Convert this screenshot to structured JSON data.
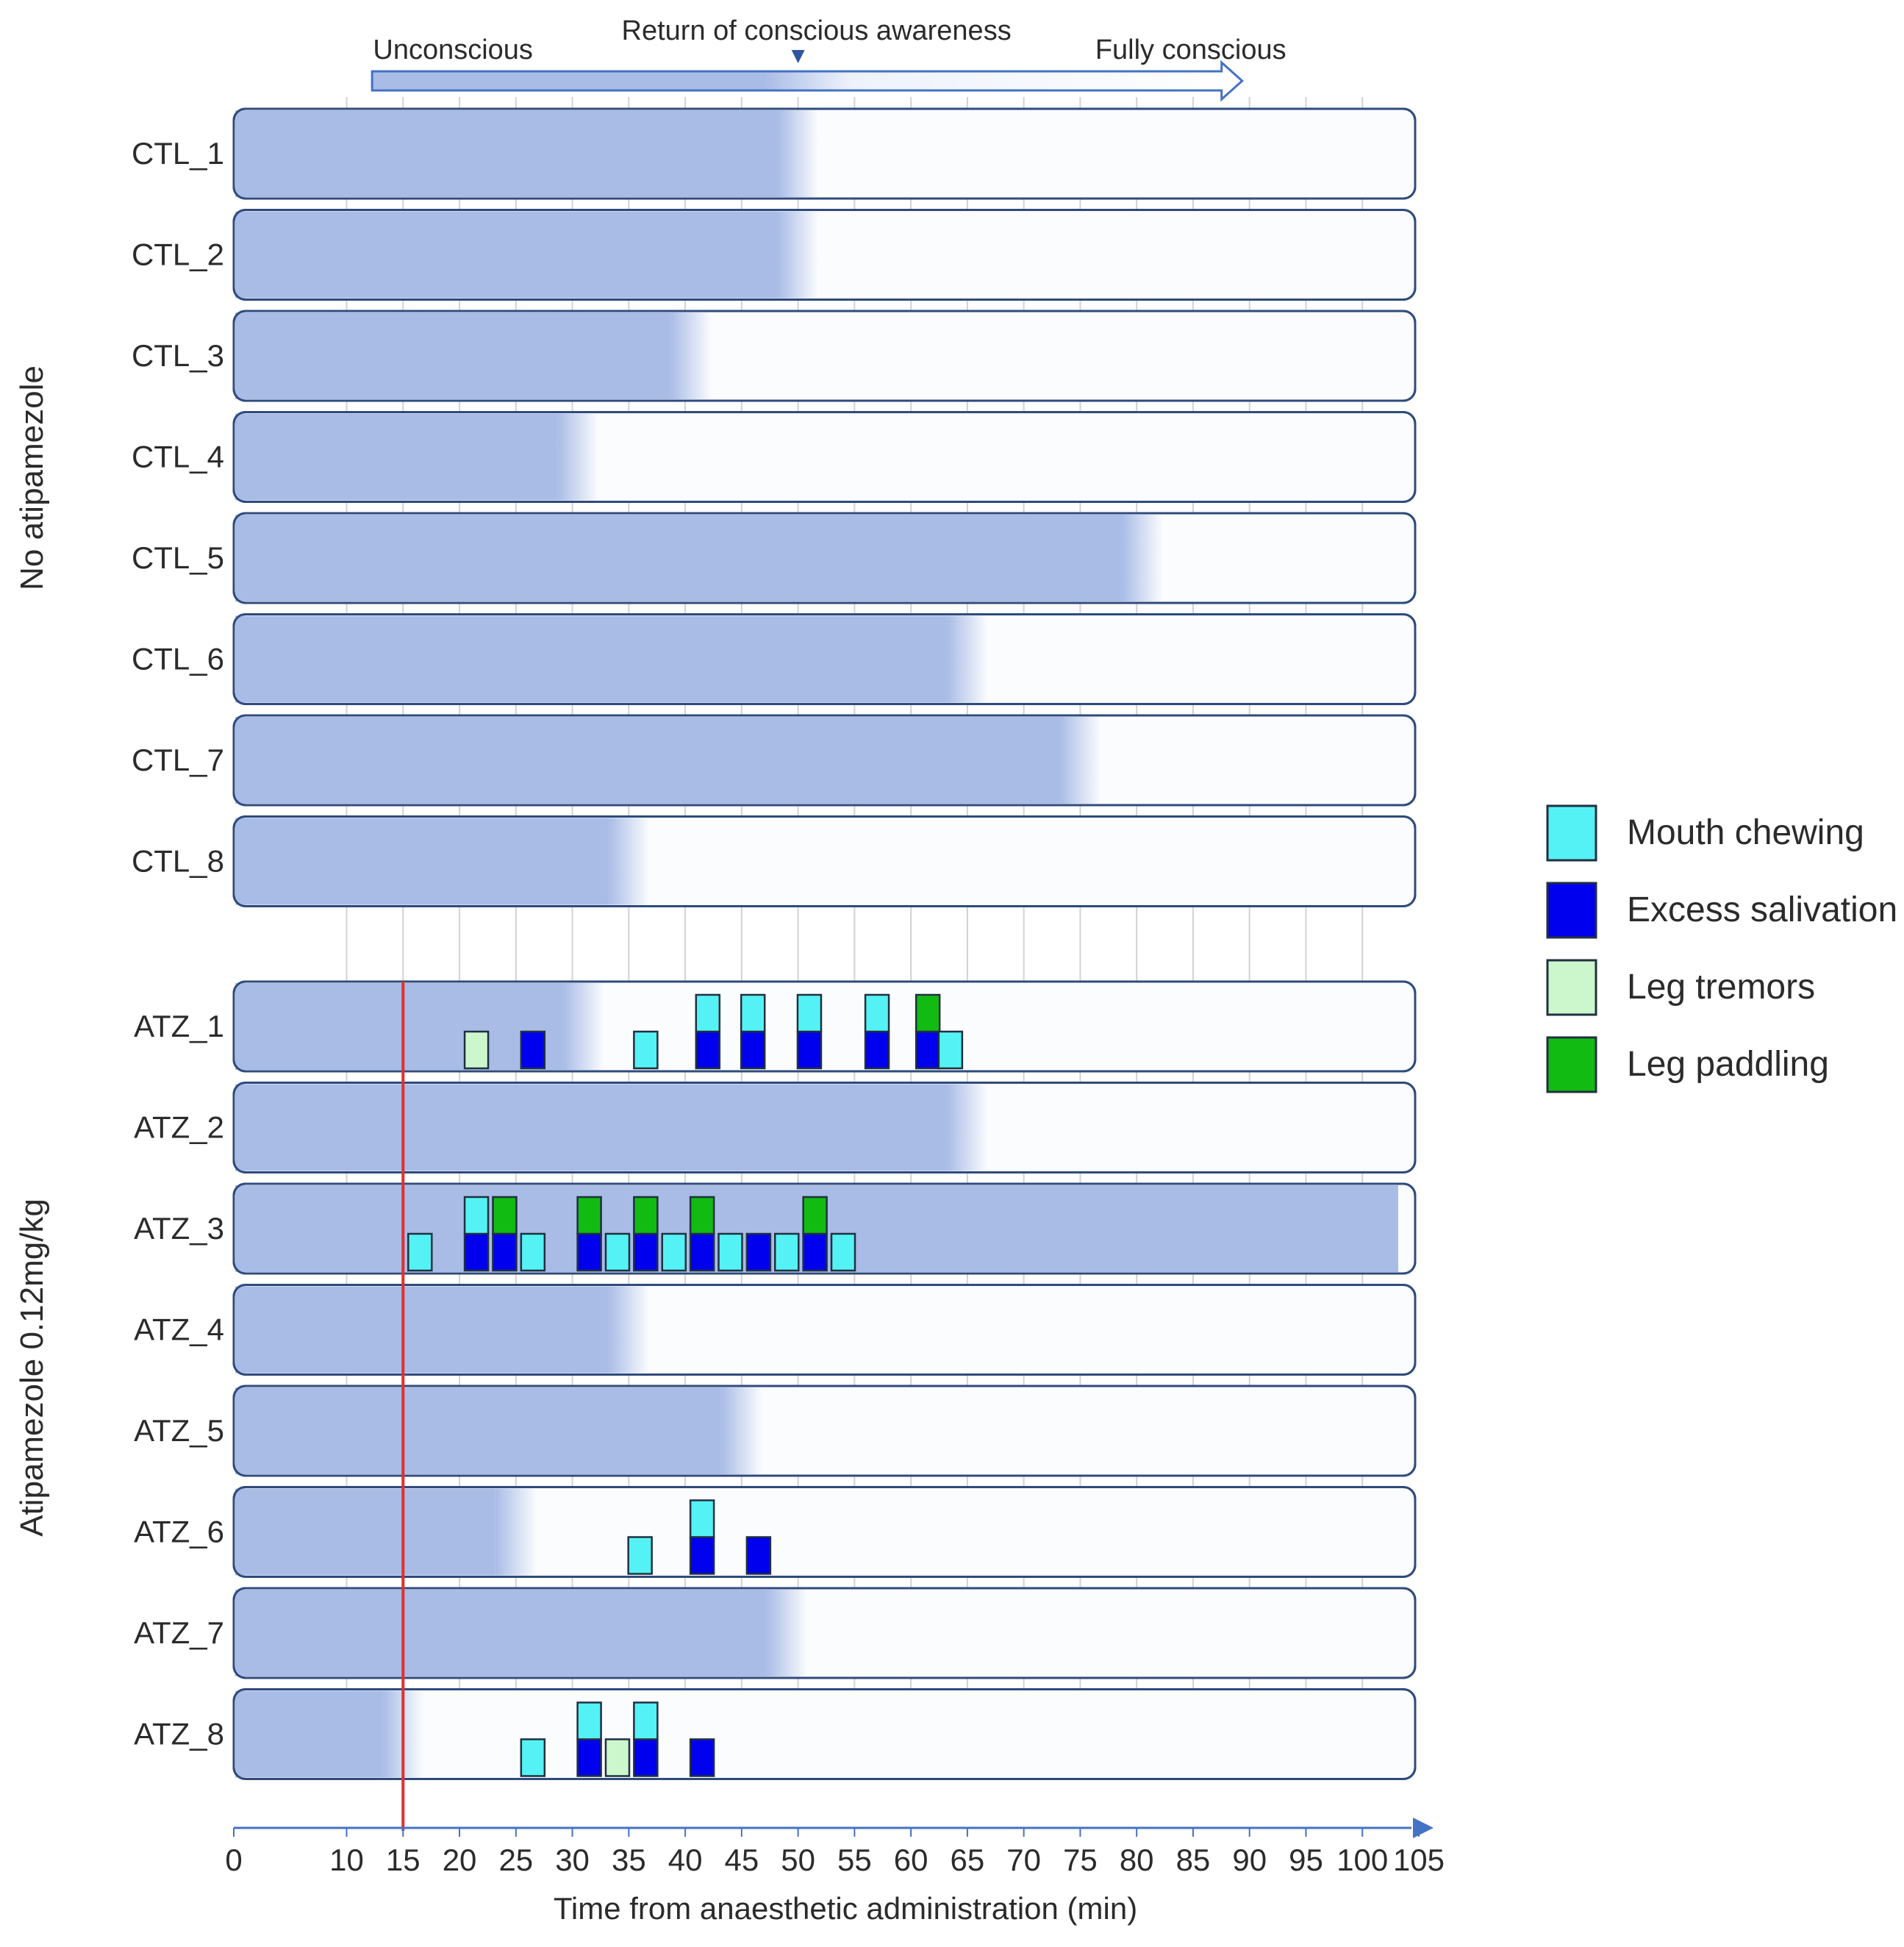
{
  "chart_data": {
    "type": "timeline",
    "xlabel": "Time from anaesthetic administration (min)",
    "xlim": [
      0,
      105
    ],
    "x_ticks": [
      0,
      10,
      15,
      20,
      25,
      30,
      35,
      40,
      45,
      50,
      55,
      60,
      65,
      70,
      75,
      80,
      85,
      90,
      95,
      100,
      105
    ],
    "gridlines_x": [
      10,
      15,
      20,
      25,
      30,
      35,
      40,
      45,
      50,
      55,
      60,
      65,
      70,
      75,
      80,
      85,
      90,
      95,
      100
    ],
    "reference_line": {
      "x": 15,
      "color": "#e03030"
    },
    "top_arrow": {
      "start_label": "Unconscious",
      "middle_label": "Return of conscious awareness",
      "end_label": "Fully conscious",
      "start_x": 9,
      "middle_x": 50,
      "end_x": 90
    },
    "groups": [
      {
        "label": "No atipamezole",
        "rows": [
          "CTL_1",
          "CTL_2",
          "CTL_3",
          "CTL_4",
          "CTL_5",
          "CTL_6",
          "CTL_7",
          "CTL_8"
        ]
      },
      {
        "label": "Atipamezole 0.12mg/kg",
        "rows": [
          "ATZ_1",
          "ATZ_2",
          "ATZ_3",
          "ATZ_4",
          "ATZ_5",
          "ATZ_6",
          "ATZ_7",
          "ATZ_8"
        ]
      }
    ],
    "legend": [
      {
        "key": "chew",
        "label": "Mouth chewing",
        "color": "#55f2f5"
      },
      {
        "key": "sal",
        "label": "Excess salivation",
        "color": "#0000ee"
      },
      {
        "key": "trem",
        "label": "Leg tremors",
        "color": "#ccf7cc"
      },
      {
        "key": "pad",
        "label": "Leg paddling",
        "color": "#11bb11"
      }
    ],
    "rows": [
      {
        "label": "CTL_1",
        "unconscious_until": 50,
        "events": []
      },
      {
        "label": "CTL_2",
        "unconscious_until": 50,
        "events": []
      },
      {
        "label": "CTL_3",
        "unconscious_until": 40.5,
        "events": []
      },
      {
        "label": "CTL_4",
        "unconscious_until": 30.5,
        "events": []
      },
      {
        "label": "CTL_5",
        "unconscious_until": 80.5,
        "events": []
      },
      {
        "label": "CTL_6",
        "unconscious_until": 65,
        "events": []
      },
      {
        "label": "CTL_7",
        "unconscious_until": 75,
        "events": []
      },
      {
        "label": "CTL_8",
        "unconscious_until": 35,
        "events": []
      },
      {
        "label": "ATZ_1",
        "unconscious_until": 31,
        "events": [
          {
            "t": 21.5,
            "stack": [
              "trem"
            ]
          },
          {
            "t": 26.5,
            "stack": [
              "sal"
            ]
          },
          {
            "t": 36.5,
            "stack": [
              "chew"
            ]
          },
          {
            "t": 42,
            "stack": [
              "sal",
              "chew"
            ]
          },
          {
            "t": 46,
            "stack": [
              "sal",
              "chew"
            ]
          },
          {
            "t": 51,
            "stack": [
              "sal",
              "chew"
            ]
          },
          {
            "t": 57,
            "stack": [
              "sal",
              "chew"
            ]
          },
          {
            "t": 61.5,
            "stack": [
              "sal",
              "pad"
            ]
          },
          {
            "t": 63.5,
            "stack": [
              "chew"
            ]
          }
        ]
      },
      {
        "label": "ATZ_2",
        "unconscious_until": 65,
        "events": []
      },
      {
        "label": "ATZ_3",
        "unconscious_until": 105,
        "events": [
          {
            "t": 16.5,
            "stack": [
              "chew"
            ]
          },
          {
            "t": 21.5,
            "stack": [
              "sal",
              "chew"
            ]
          },
          {
            "t": 24,
            "stack": [
              "sal",
              "pad"
            ]
          },
          {
            "t": 26.5,
            "stack": [
              "chew"
            ]
          },
          {
            "t": 31.5,
            "stack": [
              "sal",
              "pad"
            ]
          },
          {
            "t": 34,
            "stack": [
              "chew"
            ]
          },
          {
            "t": 36.5,
            "stack": [
              "sal",
              "pad"
            ]
          },
          {
            "t": 39,
            "stack": [
              "chew"
            ]
          },
          {
            "t": 41.5,
            "stack": [
              "sal",
              "pad"
            ]
          },
          {
            "t": 44,
            "stack": [
              "chew"
            ]
          },
          {
            "t": 46.5,
            "stack": [
              "sal"
            ]
          },
          {
            "t": 49,
            "stack": [
              "chew"
            ]
          },
          {
            "t": 51.5,
            "stack": [
              "sal",
              "pad"
            ]
          },
          {
            "t": 54,
            "stack": [
              "chew"
            ]
          }
        ]
      },
      {
        "label": "ATZ_4",
        "unconscious_until": 35,
        "events": []
      },
      {
        "label": "ATZ_5",
        "unconscious_until": 45,
        "events": []
      },
      {
        "label": "ATZ_6",
        "unconscious_until": 25,
        "events": [
          {
            "t": 36,
            "stack": [
              "chew"
            ]
          },
          {
            "t": 41.5,
            "stack": [
              "sal",
              "chew"
            ]
          },
          {
            "t": 46.5,
            "stack": [
              "sal"
            ]
          }
        ]
      },
      {
        "label": "ATZ_7",
        "unconscious_until": 49,
        "events": []
      },
      {
        "label": "ATZ_8",
        "unconscious_until": 15,
        "events": [
          {
            "t": 26.5,
            "stack": [
              "chew"
            ]
          },
          {
            "t": 31.5,
            "stack": [
              "sal",
              "chew"
            ]
          },
          {
            "t": 34,
            "stack": [
              "trem"
            ]
          },
          {
            "t": 36.5,
            "stack": [
              "sal",
              "chew"
            ]
          },
          {
            "t": 41.5,
            "stack": [
              "sal"
            ]
          }
        ]
      }
    ]
  }
}
